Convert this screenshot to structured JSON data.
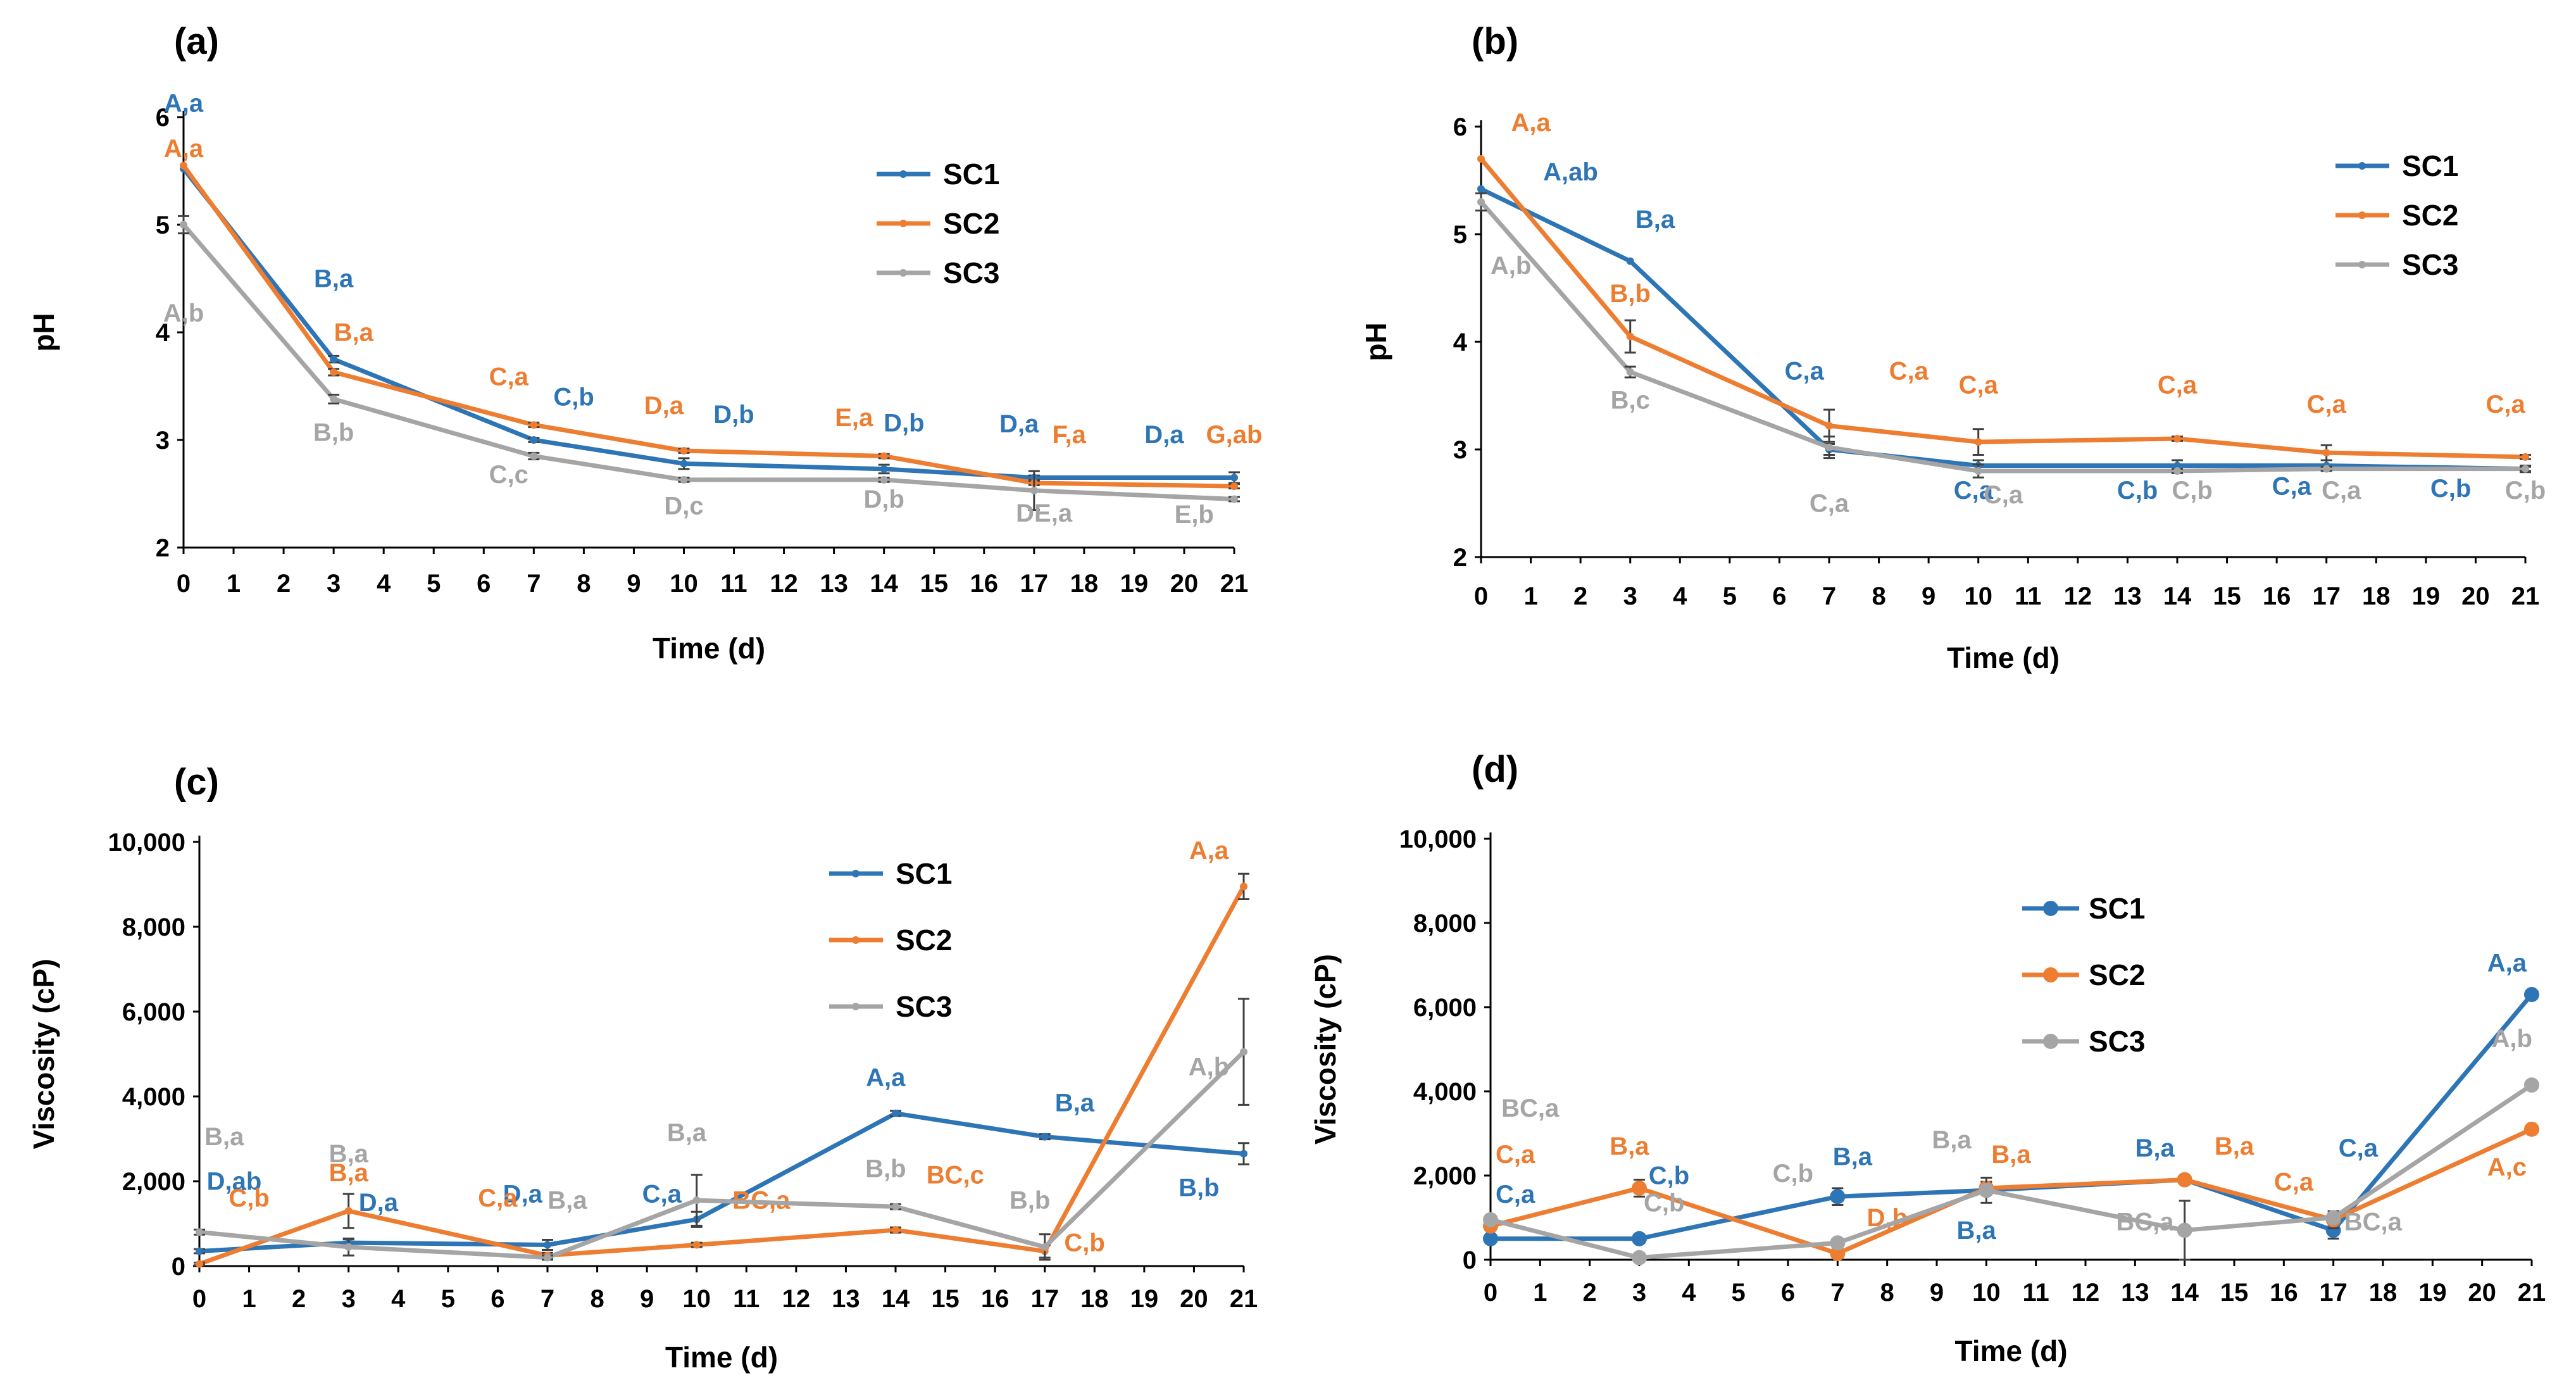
{
  "colors": {
    "SC1": "#2E75B6",
    "SC2": "#ED7D31",
    "SC3": "#A5A5A5"
  },
  "chart_data": [
    {
      "panel": "(a)",
      "type": "line",
      "xlabel": "Time (d)",
      "ylabel": "pH",
      "xlim": [
        0,
        21
      ],
      "ylim": [
        2,
        6
      ],
      "xticks": [
        "0",
        "1",
        "2",
        "3",
        "4",
        "5",
        "6",
        "7",
        "8",
        "9",
        "10",
        "11",
        "12",
        "13",
        "14",
        "15",
        "16",
        "17",
        "18",
        "19",
        "20",
        "21"
      ],
      "yticks": [
        "2",
        "3",
        "4",
        "5",
        "6"
      ],
      "legend": "top-right",
      "x": [
        0,
        3,
        7,
        10,
        14,
        17,
        21
      ],
      "series": [
        {
          "name": "SC1",
          "values": [
            5.52,
            3.75,
            3.0,
            2.78,
            2.73,
            2.65,
            2.65
          ],
          "errors": [
            0,
            0.03,
            0.02,
            0.05,
            0.04,
            0.02,
            0.05
          ],
          "annotations": [
            {
              "x": 0,
              "y": 6.05,
              "text": "A,a"
            },
            {
              "x": 3,
              "y": 4.42,
              "text": "B,a"
            },
            {
              "x": 7.8,
              "y": 3.32,
              "text": "C,b"
            },
            {
              "x": 11.0,
              "y": 3.16,
              "text": "D,b"
            },
            {
              "x": 14.4,
              "y": 3.08,
              "text": "D,b"
            },
            {
              "x": 16.7,
              "y": 3.07,
              "text": "D,a"
            },
            {
              "x": 19.6,
              "y": 2.97,
              "text": "D,a"
            }
          ]
        },
        {
          "name": "SC2",
          "values": [
            5.55,
            3.63,
            3.14,
            2.9,
            2.85,
            2.6,
            2.57
          ],
          "errors": [
            0,
            0.03,
            0.02,
            0.02,
            0.02,
            0.02,
            0.02
          ],
          "annotations": [
            {
              "x": 0,
              "y": 5.63,
              "text": "A,a"
            },
            {
              "x": 3.4,
              "y": 3.92,
              "text": "B,a"
            },
            {
              "x": 6.5,
              "y": 3.51,
              "text": "C,a"
            },
            {
              "x": 9.6,
              "y": 3.24,
              "text": "D,a"
            },
            {
              "x": 13.4,
              "y": 3.13,
              "text": "E,a"
            },
            {
              "x": 17.7,
              "y": 2.97,
              "text": "F,a"
            },
            {
              "x": 21,
              "y": 2.97,
              "text": "G,ab"
            }
          ]
        },
        {
          "name": "SC3",
          "values": [
            5.0,
            3.38,
            2.85,
            2.63,
            2.63,
            2.53,
            2.45
          ],
          "errors": [
            0.08,
            0.04,
            0.03,
            0.02,
            0.02,
            0.18,
            0.02
          ],
          "annotations": [
            {
              "x": 0,
              "y": 4.1,
              "text": "A,b"
            },
            {
              "x": 3,
              "y": 2.99,
              "text": "B,b"
            },
            {
              "x": 6.5,
              "y": 2.6,
              "text": "C,c"
            },
            {
              "x": 10,
              "y": 2.31,
              "text": "D,c"
            },
            {
              "x": 14,
              "y": 2.37,
              "text": "D,b"
            },
            {
              "x": 17.2,
              "y": 2.24,
              "text": "DE,a"
            },
            {
              "x": 20.2,
              "y": 2.23,
              "text": "E,b"
            }
          ]
        }
      ]
    },
    {
      "panel": "(b)",
      "type": "line",
      "xlabel": "Time (d)",
      "ylabel": "pH",
      "xlim": [
        0,
        21
      ],
      "ylim": [
        2,
        6
      ],
      "xticks": [
        "0",
        "1",
        "2",
        "3",
        "4",
        "5",
        "6",
        "7",
        "8",
        "9",
        "10",
        "11",
        "12",
        "13",
        "14",
        "15",
        "16",
        "17",
        "18",
        "19",
        "20",
        "21"
      ],
      "yticks": [
        "2",
        "3",
        "4",
        "5",
        "6"
      ],
      "legend": "top-right",
      "x": [
        0,
        3,
        7,
        10,
        14,
        17,
        21
      ],
      "series": [
        {
          "name": "SC1",
          "values": [
            5.42,
            4.75,
            3.0,
            2.85,
            2.85,
            2.85,
            2.82
          ],
          "errors": [
            0,
            0,
            0.05,
            0.05,
            0.05,
            0.05,
            0.03
          ],
          "annotations": [
            {
              "x": 1.8,
              "y": 5.5,
              "text": "A,ab"
            },
            {
              "x": 3.5,
              "y": 5.06,
              "text": "B,a"
            },
            {
              "x": 6.5,
              "y": 3.65,
              "text": "C,a"
            },
            {
              "x": 9.9,
              "y": 2.54,
              "text": "C,a"
            },
            {
              "x": 13.2,
              "y": 2.54,
              "text": "C,b"
            },
            {
              "x": 16.3,
              "y": 2.58,
              "text": "C,a"
            },
            {
              "x": 19.5,
              "y": 2.56,
              "text": "C,b"
            }
          ]
        },
        {
          "name": "SC2",
          "values": [
            5.7,
            4.05,
            3.22,
            3.07,
            3.1,
            2.97,
            2.93
          ],
          "errors": [
            0,
            0.15,
            0.15,
            0.12,
            0.02,
            0.07,
            0.02
          ],
          "annotations": [
            {
              "x": 1,
              "y": 5.96,
              "text": "A,a"
            },
            {
              "x": 3,
              "y": 4.37,
              "text": "B,b"
            },
            {
              "x": 8.6,
              "y": 3.65,
              "text": "C,a"
            },
            {
              "x": 10,
              "y": 3.52,
              "text": "C,a"
            },
            {
              "x": 14,
              "y": 3.52,
              "text": "C,a"
            },
            {
              "x": 17,
              "y": 3.34,
              "text": "C,a"
            },
            {
              "x": 20.6,
              "y": 3.34,
              "text": "C,a"
            }
          ]
        },
        {
          "name": "SC3",
          "values": [
            5.3,
            3.72,
            3.02,
            2.8,
            2.8,
            2.82,
            2.82
          ],
          "errors": [
            0.08,
            0.05,
            0.1,
            0.06,
            0.02,
            0.02,
            0.02
          ],
          "annotations": [
            {
              "x": 0.6,
              "y": 4.63,
              "text": "A,b"
            },
            {
              "x": 3,
              "y": 3.38,
              "text": "B,c"
            },
            {
              "x": 7,
              "y": 2.42,
              "text": "C,a"
            },
            {
              "x": 10.5,
              "y": 2.5,
              "text": "C,a"
            },
            {
              "x": 14.3,
              "y": 2.54,
              "text": "C,b"
            },
            {
              "x": 17.3,
              "y": 2.54,
              "text": "C,a"
            },
            {
              "x": 21,
              "y": 2.54,
              "text": "C,b"
            }
          ]
        }
      ]
    },
    {
      "panel": "(c)",
      "type": "line",
      "xlabel": "Time (d)",
      "ylabel": "Viscosity (cP)",
      "xlim": [
        0,
        21
      ],
      "ylim": [
        0,
        10000
      ],
      "xticks": [
        "0",
        "1",
        "2",
        "3",
        "4",
        "5",
        "6",
        "7",
        "8",
        "9",
        "10",
        "11",
        "12",
        "13",
        "14",
        "15",
        "16",
        "17",
        "18",
        "19",
        "20",
        "21"
      ],
      "yticks": [
        "0",
        "2,000",
        "4,000",
        "6,000",
        "8,000",
        "10,000"
      ],
      "legend": "top-right",
      "x": [
        0,
        3,
        7,
        10,
        14,
        17,
        21
      ],
      "series": [
        {
          "name": "SC1",
          "values": [
            350,
            550,
            500,
            1100,
            3600,
            3050,
            2650
          ],
          "errors": [
            50,
            80,
            120,
            180,
            60,
            60,
            250
          ],
          "annotations": [
            {
              "x": 0.7,
              "y": 1800,
              "text": "D,ab"
            },
            {
              "x": 3.6,
              "y": 1300,
              "text": "D,a"
            },
            {
              "x": 6.5,
              "y": 1500,
              "text": "D,a"
            },
            {
              "x": 9.3,
              "y": 1500,
              "text": "C,a"
            },
            {
              "x": 13.8,
              "y": 4250,
              "text": "A,a"
            },
            {
              "x": 17.6,
              "y": 3650,
              "text": "B,a"
            },
            {
              "x": 20.1,
              "y": 1650,
              "text": "B,b"
            }
          ]
        },
        {
          "name": "SC2",
          "values": [
            50,
            1300,
            250,
            500,
            850,
            350,
            8950
          ],
          "errors": [
            30,
            400,
            60,
            50,
            60,
            150,
            300
          ],
          "annotations": [
            {
              "x": 1.0,
              "y": 1400,
              "text": "C,b"
            },
            {
              "x": 3,
              "y": 2000,
              "text": "B,a"
            },
            {
              "x": 6,
              "y": 1400,
              "text": "C,a"
            },
            {
              "x": 11.3,
              "y": 1350,
              "text": "BC,a"
            },
            {
              "x": 15.2,
              "y": 1950,
              "text": "BC,c"
            },
            {
              "x": 17.8,
              "y": 350,
              "text": "C,b"
            },
            {
              "x": 20.3,
              "y": 9600,
              "text": "A,a"
            }
          ]
        },
        {
          "name": "SC3",
          "values": [
            800,
            450,
            200,
            1550,
            1400,
            450,
            5050
          ],
          "errors": [
            60,
            200,
            50,
            600,
            60,
            300,
            1250
          ],
          "annotations": [
            {
              "x": 0.5,
              "y": 2850,
              "text": "B,a"
            },
            {
              "x": 3,
              "y": 2450,
              "text": "B,a"
            },
            {
              "x": 7.4,
              "y": 1350,
              "text": "B,a"
            },
            {
              "x": 9.8,
              "y": 2950,
              "text": "B,a"
            },
            {
              "x": 13.8,
              "y": 2100,
              "text": "B,b"
            },
            {
              "x": 16.7,
              "y": 1350,
              "text": "B,b"
            },
            {
              "x": 20.3,
              "y": 4500,
              "text": "A,b"
            }
          ]
        }
      ]
    },
    {
      "panel": "(d)",
      "type": "line",
      "xlabel": "Time (d)",
      "ylabel": "Viscosity (cP)",
      "xlim": [
        0,
        21
      ],
      "ylim": [
        0,
        10000
      ],
      "xticks": [
        "0",
        "1",
        "2",
        "3",
        "4",
        "5",
        "6",
        "7",
        "8",
        "9",
        "10",
        "11",
        "12",
        "13",
        "14",
        "15",
        "16",
        "17",
        "18",
        "19",
        "20",
        "21"
      ],
      "yticks": [
        "0",
        "2,000",
        "4,000",
        "6,000",
        "8,000",
        "10,000"
      ],
      "legend": "top-center",
      "x": [
        0,
        3,
        7,
        10,
        14,
        17,
        21
      ],
      "series": [
        {
          "name": "SC1",
          "values": [
            500,
            500,
            1500,
            1650,
            1900,
            700,
            6300
          ],
          "errors": [
            30,
            30,
            200,
            100,
            50,
            200,
            50
          ],
          "annotations": [
            {
              "x": 0.5,
              "y": 1350,
              "text": "C,a"
            },
            {
              "x": 3.6,
              "y": 1800,
              "text": "C,b"
            },
            {
              "x": 7.3,
              "y": 2250,
              "text": "B,a"
            },
            {
              "x": 9.8,
              "y": 500,
              "text": "B,a"
            },
            {
              "x": 13.4,
              "y": 2450,
              "text": "B,a"
            },
            {
              "x": 17.5,
              "y": 2450,
              "text": "C,a"
            },
            {
              "x": 20.5,
              "y": 6850,
              "text": "A,a"
            }
          ]
        },
        {
          "name": "SC2",
          "values": [
            800,
            1700,
            150,
            1700,
            1900,
            950,
            3100
          ],
          "errors": [
            60,
            200,
            40,
            150,
            60,
            200,
            40
          ],
          "annotations": [
            {
              "x": 0.5,
              "y": 2300,
              "text": "C,a"
            },
            {
              "x": 2.8,
              "y": 2500,
              "text": "B,a"
            },
            {
              "x": 8.0,
              "y": 800,
              "text": "D,b"
            },
            {
              "x": 10.5,
              "y": 2300,
              "text": "B,a"
            },
            {
              "x": 15.0,
              "y": 2500,
              "text": "B,a"
            },
            {
              "x": 16.2,
              "y": 1650,
              "text": "C,a"
            },
            {
              "x": 20.5,
              "y": 2000,
              "text": "A,c"
            }
          ]
        },
        {
          "name": "SC3",
          "values": [
            950,
            50,
            400,
            1650,
            700,
            1000,
            4150
          ],
          "errors": [
            60,
            20,
            60,
            300,
            700,
            100,
            80
          ],
          "annotations": [
            {
              "x": 0.8,
              "y": 3400,
              "text": "BC,a"
            },
            {
              "x": 3.5,
              "y": 1150,
              "text": "C,b"
            },
            {
              "x": 6.1,
              "y": 1850,
              "text": "C,b"
            },
            {
              "x": 9.3,
              "y": 2650,
              "text": "B,a"
            },
            {
              "x": 13.2,
              "y": 700,
              "text": "BC,a"
            },
            {
              "x": 17.8,
              "y": 700,
              "text": "BC,a"
            },
            {
              "x": 20.6,
              "y": 5050,
              "text": "A,b"
            }
          ]
        }
      ]
    }
  ]
}
